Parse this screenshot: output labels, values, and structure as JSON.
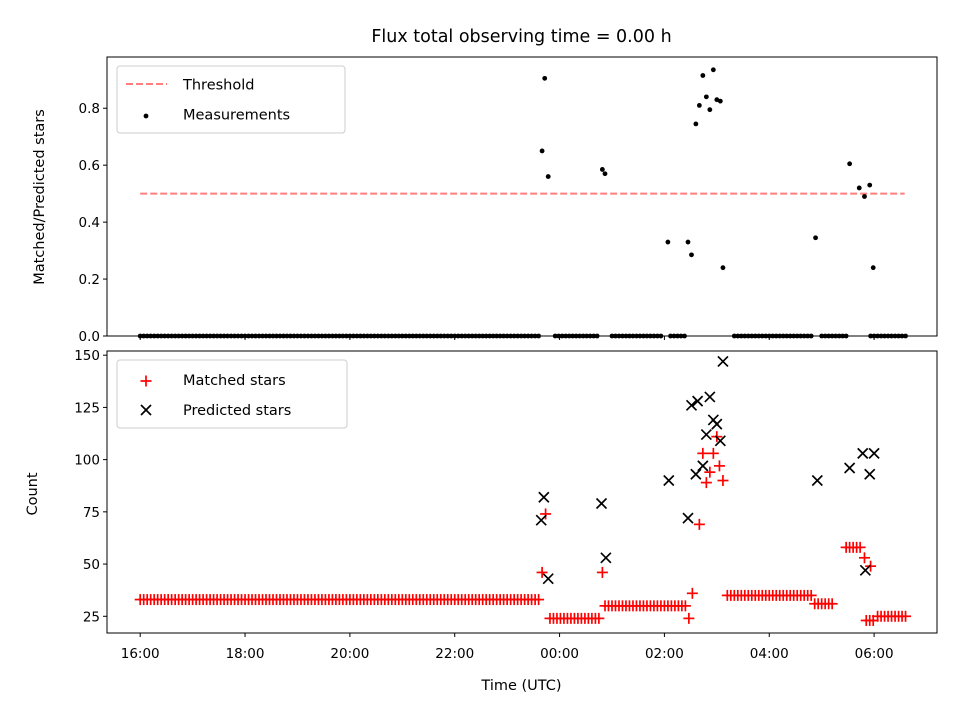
{
  "chart_data": [
    {
      "type": "scatter",
      "title": "Flux total observing time = 0.00 h",
      "ylabel": "Matched/Predicted stars",
      "xlim": [
        "15:22",
        "07:12"
      ],
      "ylim": [
        0,
        0.98
      ],
      "yticks": [
        0.0,
        0.2,
        0.4,
        0.6,
        0.8
      ],
      "ytick_labels": [
        "0.0",
        "0.2",
        "0.4",
        "0.6",
        "0.8"
      ],
      "legend_position": "upper left",
      "series": [
        {
          "name": "Threshold",
          "kind": "line",
          "style": "dashed",
          "color": "#ff7f7f",
          "x": [
            "16:00",
            "06:35"
          ],
          "y": [
            0.5,
            0.5
          ]
        },
        {
          "name": "Measurements",
          "kind": "scatter",
          "marker": "dot",
          "color": "#000000",
          "runs": [
            {
              "start": "16:00",
              "end": "23:36",
              "step_min": 4,
              "value": 0
            },
            {
              "start": "23:55",
              "end": "00:45",
              "step_min": 4,
              "value": 0
            },
            {
              "start": "01:00",
              "end": "01:58",
              "step_min": 4,
              "value": 0
            },
            {
              "start": "02:07",
              "end": "02:24",
              "step_min": 4,
              "value": 0
            },
            {
              "start": "03:20",
              "end": "04:48",
              "step_min": 4,
              "value": 0
            },
            {
              "start": "05:00",
              "end": "05:28",
              "step_min": 4,
              "value": 0
            },
            {
              "start": "05:56",
              "end": "06:36",
              "step_min": 4,
              "value": 0
            }
          ],
          "points": [
            {
              "x": "23:40",
              "y": 0.65
            },
            {
              "x": "23:43",
              "y": 0.905
            },
            {
              "x": "23:47",
              "y": 0.56
            },
            {
              "x": "00:49",
              "y": 0.585
            },
            {
              "x": "00:52",
              "y": 0.57
            },
            {
              "x": "02:04",
              "y": 0.33
            },
            {
              "x": "02:27",
              "y": 0.33
            },
            {
              "x": "02:31",
              "y": 0.285
            },
            {
              "x": "02:36",
              "y": 0.745
            },
            {
              "x": "02:40",
              "y": 0.81
            },
            {
              "x": "02:44",
              "y": 0.915
            },
            {
              "x": "02:48",
              "y": 0.84
            },
            {
              "x": "02:52",
              "y": 0.795
            },
            {
              "x": "02:56",
              "y": 0.935
            },
            {
              "x": "03:00",
              "y": 0.83
            },
            {
              "x": "03:04",
              "y": 0.825
            },
            {
              "x": "03:07",
              "y": 0.24
            },
            {
              "x": "04:53",
              "y": 0.345
            },
            {
              "x": "05:32",
              "y": 0.605
            },
            {
              "x": "05:43",
              "y": 0.52
            },
            {
              "x": "05:49",
              "y": 0.49
            },
            {
              "x": "05:55",
              "y": 0.53
            },
            {
              "x": "05:59",
              "y": 0.24
            }
          ]
        }
      ]
    },
    {
      "type": "scatter",
      "ylabel": "Count",
      "xlabel": "Time (UTC)",
      "xlim": [
        "15:22",
        "07:12"
      ],
      "ylim": [
        17,
        152
      ],
      "yticks": [
        25,
        50,
        75,
        100,
        125,
        150
      ],
      "ytick_labels": [
        "25",
        "50",
        "75",
        "100",
        "125",
        "150"
      ],
      "xticks": [
        "16:00",
        "18:00",
        "20:00",
        "22:00",
        "00:00",
        "02:00",
        "04:00",
        "06:00"
      ],
      "xtick_labels": [
        "16:00",
        "18:00",
        "20:00",
        "22:00",
        "00:00",
        "02:00",
        "04:00",
        "06:00"
      ],
      "legend_position": "upper left",
      "series": [
        {
          "name": "Matched stars",
          "kind": "scatter",
          "marker": "plus",
          "color": "#ff0000",
          "runs": [
            {
              "start": "16:00",
              "end": "23:36",
              "step_min": 4,
              "value": 33
            },
            {
              "start": "23:49",
              "end": "00:45",
              "step_min": 4,
              "value": 24
            },
            {
              "start": "00:52",
              "end": "02:24",
              "step_min": 4,
              "value": 30
            },
            {
              "start": "03:12",
              "end": "04:48",
              "step_min": 4,
              "value": 35
            },
            {
              "start": "04:52",
              "end": "05:14",
              "step_min": 4,
              "value": 31
            },
            {
              "start": "05:28",
              "end": "05:45",
              "step_min": 4,
              "value": 58
            },
            {
              "start": "05:51",
              "end": "06:00",
              "step_min": 4,
              "value": 23
            },
            {
              "start": "06:04",
              "end": "06:36",
              "step_min": 4,
              "value": 25
            }
          ],
          "points": [
            {
              "x": "23:40",
              "y": 46
            },
            {
              "x": "23:44",
              "y": 74
            },
            {
              "x": "00:49",
              "y": 46
            },
            {
              "x": "02:28",
              "y": 24
            },
            {
              "x": "02:32",
              "y": 36
            },
            {
              "x": "02:40",
              "y": 69
            },
            {
              "x": "02:44",
              "y": 103
            },
            {
              "x": "02:48",
              "y": 89
            },
            {
              "x": "02:52",
              "y": 94
            },
            {
              "x": "02:56",
              "y": 103
            },
            {
              "x": "03:00",
              "y": 111
            },
            {
              "x": "03:03",
              "y": 97
            },
            {
              "x": "03:07",
              "y": 90
            },
            {
              "x": "05:49",
              "y": 53
            },
            {
              "x": "05:56",
              "y": 49
            }
          ]
        },
        {
          "name": "Predicted stars",
          "kind": "scatter",
          "marker": "x",
          "color": "#000000",
          "points": [
            {
              "x": "23:39",
              "y": 71
            },
            {
              "x": "23:42",
              "y": 82
            },
            {
              "x": "23:47",
              "y": 43
            },
            {
              "x": "00:48",
              "y": 79
            },
            {
              "x": "00:53",
              "y": 53
            },
            {
              "x": "02:05",
              "y": 90
            },
            {
              "x": "02:27",
              "y": 72
            },
            {
              "x": "02:31",
              "y": 126
            },
            {
              "x": "02:36",
              "y": 93
            },
            {
              "x": "02:38",
              "y": 128
            },
            {
              "x": "02:44",
              "y": 97
            },
            {
              "x": "02:48",
              "y": 112
            },
            {
              "x": "02:52",
              "y": 130
            },
            {
              "x": "02:56",
              "y": 119
            },
            {
              "x": "03:00",
              "y": 117
            },
            {
              "x": "03:04",
              "y": 109
            },
            {
              "x": "03:07",
              "y": 147
            },
            {
              "x": "04:55",
              "y": 90
            },
            {
              "x": "05:32",
              "y": 96
            },
            {
              "x": "05:47",
              "y": 103
            },
            {
              "x": "05:50",
              "y": 47
            },
            {
              "x": "05:55",
              "y": 93
            },
            {
              "x": "06:00",
              "y": 103
            }
          ]
        }
      ]
    }
  ]
}
